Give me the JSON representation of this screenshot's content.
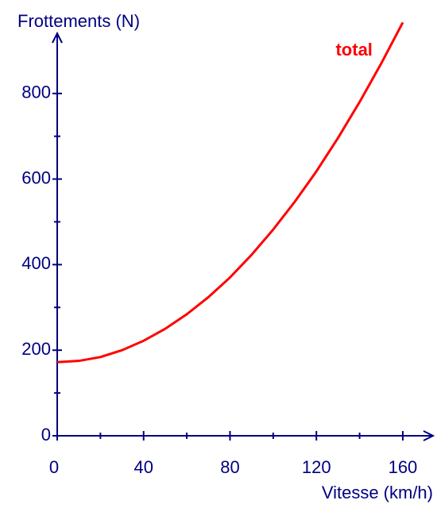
{
  "chart_data": {
    "type": "line",
    "y_label": "Frottements (N)",
    "x_label": "Vitesse (km/h)",
    "x": [
      0,
      10,
      20,
      30,
      40,
      50,
      60,
      70,
      80,
      90,
      100,
      110,
      120,
      130,
      140,
      150,
      160
    ],
    "series": [
      {
        "name": "total",
        "color": "#ff0000",
        "values": [
          172,
          175,
          184,
          200,
          222,
          250,
          284,
          324,
          370,
          423,
          482,
          547,
          618,
          696,
          780,
          870,
          966
        ]
      }
    ],
    "xlim": [
      0,
      174
    ],
    "ylim": [
      0,
      935
    ],
    "xticks": [
      0,
      40,
      80,
      120,
      160
    ],
    "yticks": [
      0,
      200,
      400,
      600,
      800
    ],
    "xticks_minor": [
      20,
      60,
      100,
      140
    ],
    "yticks_minor": [
      100,
      300,
      500,
      700
    ]
  }
}
